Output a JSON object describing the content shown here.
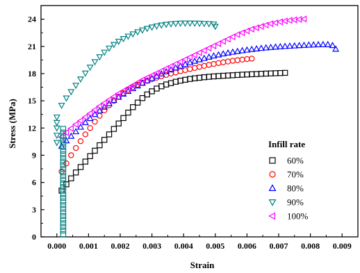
{
  "chart_data": {
    "type": "scatter",
    "xlabel": "Strain",
    "ylabel": "Stress (MPa)",
    "xlim": [
      -0.0005,
      0.0095
    ],
    "ylim": [
      0,
      25.5
    ],
    "xticks": [
      "0.000",
      "0.001",
      "0.002",
      "0.003",
      "0.004",
      "0.005",
      "0.006",
      "0.007",
      "0.008",
      "0.009"
    ],
    "yticks": [
      "0",
      "3",
      "6",
      "9",
      "12",
      "15",
      "18",
      "21",
      "24"
    ],
    "grid": false,
    "legend": {
      "title": "Infill rate",
      "placement": "right"
    },
    "series": [
      {
        "name": "60%",
        "marker": "square",
        "color": "#000000",
        "x": [
          0.00015,
          0.0003,
          0.00045,
          0.0006,
          0.00075,
          0.0009,
          0.00105,
          0.0012,
          0.00135,
          0.0015,
          0.00165,
          0.0018,
          0.00195,
          0.0021,
          0.00225,
          0.0024,
          0.00255,
          0.0027,
          0.00285,
          0.003,
          0.00315,
          0.0033,
          0.00345,
          0.0036,
          0.00375,
          0.0039,
          0.00405,
          0.0042,
          0.00435,
          0.0045,
          0.00465,
          0.0048,
          0.00495,
          0.0051,
          0.00525,
          0.0054,
          0.00555,
          0.0057,
          0.00585,
          0.006,
          0.00615,
          0.0063,
          0.00645,
          0.0066,
          0.00675,
          0.0069,
          0.00705,
          0.0072
        ],
        "y": [
          5.1,
          5.8,
          6.45,
          7.1,
          7.7,
          8.3,
          8.9,
          9.5,
          10.1,
          10.7,
          11.3,
          11.9,
          12.5,
          13.1,
          13.7,
          14.3,
          14.8,
          15.3,
          15.7,
          16.05,
          16.35,
          16.6,
          16.8,
          16.95,
          17.1,
          17.22,
          17.32,
          17.41,
          17.48,
          17.54,
          17.6,
          17.65,
          17.69,
          17.73,
          17.76,
          17.79,
          17.82,
          17.85,
          17.88,
          17.9,
          17.93,
          17.95,
          17.98,
          18.0,
          18.02,
          18.04,
          18.06,
          18.08
        ]
      },
      {
        "name": "70%",
        "marker": "circle",
        "color": "#ff0000",
        "x": [
          0.00015,
          0.0003,
          0.00045,
          0.0006,
          0.00075,
          0.0009,
          0.00105,
          0.0012,
          0.00135,
          0.0015,
          0.00165,
          0.0018,
          0.00195,
          0.0021,
          0.00225,
          0.0024,
          0.00255,
          0.0027,
          0.00285,
          0.003,
          0.00315,
          0.0033,
          0.00345,
          0.0036,
          0.00375,
          0.0039,
          0.00405,
          0.0042,
          0.00435,
          0.0045,
          0.00465,
          0.0048,
          0.00495,
          0.0051,
          0.00525,
          0.0054,
          0.00555,
          0.0057,
          0.00585,
          0.006,
          0.00615
        ],
        "y": [
          7.2,
          8.1,
          9.0,
          9.8,
          10.55,
          11.3,
          12.0,
          12.7,
          13.35,
          13.95,
          14.5,
          15.0,
          15.45,
          15.85,
          16.2,
          16.5,
          16.77,
          17.0,
          17.2,
          17.38,
          17.55,
          17.7,
          17.85,
          18.0,
          18.13,
          18.26,
          18.38,
          18.5,
          18.62,
          18.74,
          18.85,
          18.96,
          19.06,
          19.16,
          19.25,
          19.33,
          19.41,
          19.48,
          19.54,
          19.6,
          19.65
        ]
      },
      {
        "name": "80%",
        "marker": "triangle-up",
        "color": "#0000ff",
        "x": [
          0.00015,
          0.0003,
          0.00045,
          0.0006,
          0.00075,
          0.0009,
          0.00105,
          0.0012,
          0.00135,
          0.0015,
          0.00165,
          0.0018,
          0.00195,
          0.0021,
          0.00225,
          0.0024,
          0.00255,
          0.0027,
          0.00285,
          0.003,
          0.00315,
          0.0033,
          0.00345,
          0.0036,
          0.00375,
          0.0039,
          0.00405,
          0.0042,
          0.00435,
          0.0045,
          0.00465,
          0.0048,
          0.00495,
          0.0051,
          0.00525,
          0.0054,
          0.00555,
          0.0057,
          0.00585,
          0.006,
          0.00615,
          0.0063,
          0.00645,
          0.0066,
          0.00675,
          0.0069,
          0.00705,
          0.0072,
          0.00735,
          0.0075,
          0.00765,
          0.0078,
          0.00795,
          0.0081,
          0.00825,
          0.0084,
          0.00855,
          0.0087,
          0.0088
        ],
        "y": [
          10.0,
          10.6,
          11.1,
          11.6,
          12.1,
          12.6,
          13.05,
          13.5,
          13.9,
          14.3,
          14.7,
          15.05,
          15.4,
          15.75,
          16.05,
          16.35,
          16.65,
          16.95,
          17.22,
          17.48,
          17.73,
          17.97,
          18.2,
          18.42,
          18.63,
          18.83,
          19.02,
          19.2,
          19.37,
          19.53,
          19.68,
          19.82,
          19.95,
          20.07,
          20.18,
          20.28,
          20.37,
          20.45,
          20.53,
          20.6,
          20.67,
          20.73,
          20.79,
          20.84,
          20.89,
          20.93,
          20.97,
          21.0,
          21.03,
          21.06,
          21.09,
          21.12,
          21.15,
          21.17,
          21.19,
          21.2,
          21.2,
          21.1,
          20.7
        ]
      },
      {
        "name": "90%",
        "marker": "triangle-down",
        "color": "#008080",
        "x": [
          0.00015,
          0.0003,
          0.00045,
          0.0006,
          0.00075,
          0.0009,
          0.00105,
          0.0012,
          0.00135,
          0.0015,
          0.00165,
          0.0018,
          0.00195,
          0.0021,
          0.00225,
          0.0024,
          0.00255,
          0.0027,
          0.00285,
          0.003,
          0.00315,
          0.0033,
          0.00345,
          0.0036,
          0.00375,
          0.0039,
          0.00405,
          0.0042,
          0.00435,
          0.0045,
          0.00465,
          0.0048,
          0.00495,
          0.005
        ],
        "y": [
          14.5,
          15.3,
          16.0,
          16.7,
          17.4,
          18.05,
          18.7,
          19.3,
          19.85,
          20.35,
          20.8,
          21.2,
          21.55,
          21.85,
          22.12,
          22.37,
          22.6,
          22.8,
          22.97,
          23.12,
          23.24,
          23.34,
          23.42,
          23.48,
          23.52,
          23.55,
          23.56,
          23.56,
          23.55,
          23.54,
          23.52,
          23.5,
          23.45,
          23.2
        ]
      },
      {
        "name": "100%",
        "marker": "triangle-left",
        "color": "#ff00ff",
        "x": [
          0.00015,
          0.0003,
          0.00045,
          0.0006,
          0.00075,
          0.0009,
          0.00105,
          0.0012,
          0.00135,
          0.0015,
          0.00165,
          0.0018,
          0.00195,
          0.0021,
          0.00225,
          0.0024,
          0.00255,
          0.0027,
          0.00285,
          0.003,
          0.00315,
          0.0033,
          0.00345,
          0.0036,
          0.00375,
          0.0039,
          0.00405,
          0.0042,
          0.00435,
          0.0045,
          0.00465,
          0.0048,
          0.00495,
          0.0051,
          0.00525,
          0.0054,
          0.00555,
          0.0057,
          0.00585,
          0.006,
          0.00615,
          0.0063,
          0.00645,
          0.0066,
          0.00675,
          0.0069,
          0.00705,
          0.0072,
          0.00735,
          0.0075,
          0.00765,
          0.0078
        ],
        "y": [
          11.0,
          11.5,
          11.95,
          12.4,
          12.8,
          13.2,
          13.6,
          14.0,
          14.4,
          14.75,
          15.1,
          15.45,
          15.8,
          16.1,
          16.4,
          16.7,
          17.0,
          17.3,
          17.55,
          17.8,
          18.05,
          18.3,
          18.55,
          18.8,
          19.05,
          19.3,
          19.55,
          19.8,
          20.05,
          20.3,
          20.55,
          20.8,
          21.05,
          21.3,
          21.55,
          21.8,
          22.05,
          22.3,
          22.5,
          22.7,
          22.9,
          23.05,
          23.2,
          23.35,
          23.5,
          23.6,
          23.7,
          23.8,
          23.87,
          23.93,
          23.98,
          24.02
        ]
      },
      {
        "name": "",
        "marker": "square",
        "color": "#008080",
        "x": [
          0.0002,
          0.0002,
          0.0002,
          0.0002,
          0.0002,
          0.0002,
          0.0002,
          0.0002,
          0.0002,
          0.0002,
          0.0002,
          0.0002,
          0.0002,
          0.0002,
          0.0002,
          0.0002,
          0.0002,
          0.0002,
          0.0002,
          0.0002,
          0.0002,
          0.0002,
          0.0002,
          0.0002,
          0.0002,
          0.0002,
          0.0002,
          0.0002,
          0.0002,
          0.0002
        ],
        "y": [
          0.3,
          0.7,
          1.1,
          1.5,
          1.9,
          2.3,
          2.7,
          3.1,
          3.5,
          3.9,
          4.3,
          4.7,
          5.1,
          5.5,
          5.9,
          6.3,
          6.7,
          7.1,
          7.5,
          7.9,
          8.3,
          8.7,
          9.1,
          9.5,
          9.9,
          10.3,
          10.7,
          11.1,
          11.5,
          11.9
        ]
      },
      {
        "name": "",
        "marker": "triangle-down",
        "color": "#008080",
        "x": [
          0.0,
          0.0,
          0.0,
          0.0,
          0.0
        ],
        "y": [
          10.4,
          11.2,
          12.0,
          12.6,
          13.2
        ]
      }
    ]
  }
}
